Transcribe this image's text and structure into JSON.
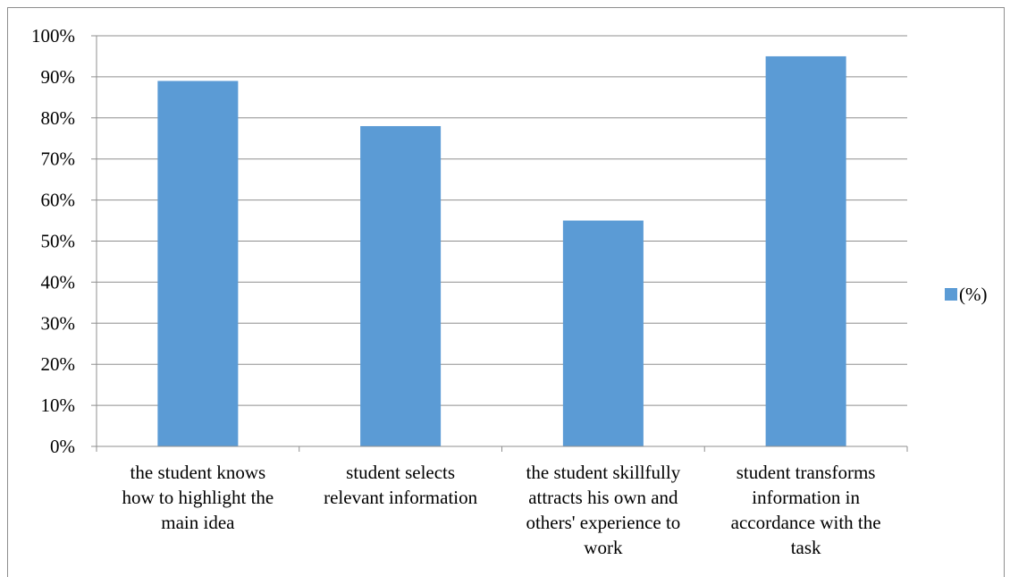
{
  "chart_data": {
    "type": "bar",
    "categories": [
      [
        "the student knows",
        "how to highlight the",
        "main idea"
      ],
      [
        "student selects",
        "relevant information"
      ],
      [
        "the student skillfully",
        "attracts his own and",
        "others' experience to",
        "work"
      ],
      [
        "student transforms",
        "information in",
        "accordance with the",
        "task"
      ]
    ],
    "series": [
      {
        "name": "(%)",
        "values": [
          89,
          78,
          55,
          95
        ],
        "color": "#5b9bd5"
      }
    ],
    "y_ticks": [
      "0%",
      "10%",
      "20%",
      "30%",
      "40%",
      "50%",
      "60%",
      "70%",
      "80%",
      "90%",
      "100%"
    ],
    "ylim": [
      0,
      100
    ],
    "grid": true,
    "legend_position": "right"
  }
}
